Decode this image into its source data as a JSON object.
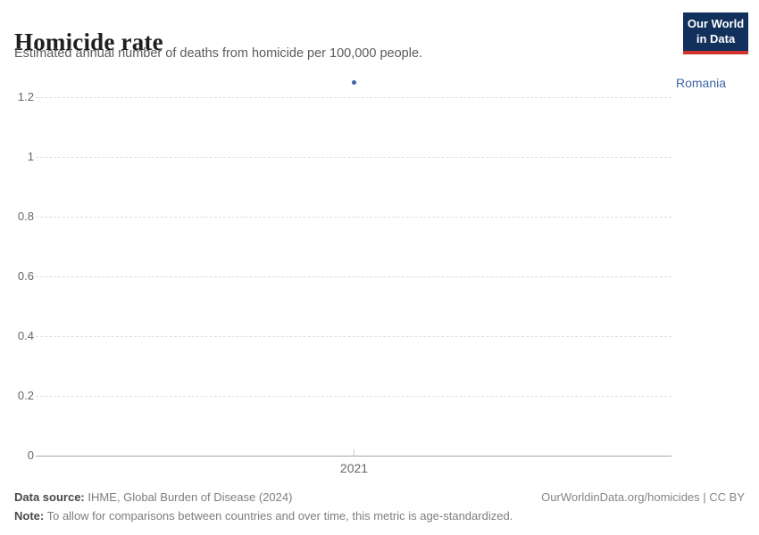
{
  "header": {
    "title": "Homicide rate",
    "subtitle": "Estimated annual number of deaths from homicide per 100,000 people.",
    "logo_line1": "Our World",
    "logo_line2": "in Data"
  },
  "chart_data": {
    "type": "scatter",
    "title": "Homicide rate",
    "subtitle": "Estimated annual number of deaths from homicide per 100,000 people.",
    "series": [
      {
        "name": "Romania",
        "x": [
          2021
        ],
        "values": [
          1.25
        ]
      }
    ],
    "x_tick_labels": [
      "2021"
    ],
    "y_ticks": [
      0,
      0.2,
      0.4,
      0.6,
      0.8,
      1,
      1.2
    ],
    "ylim": [
      0,
      1.25
    ],
    "xlabel": "",
    "ylabel": "",
    "grid": "horizontal-dashed",
    "legend_position": "right-of-plot"
  },
  "entity": {
    "label": "Romania",
    "color": "#3d65a5"
  },
  "footer": {
    "source_label": "Data source:",
    "source_text": " IHME, Global Burden of Disease (2024)",
    "note_label": "Note:",
    "note_text": " To allow for comparisons between countries and over time, this metric is age-standardized.",
    "link": "OurWorldinData.org/homicides | CC BY"
  },
  "colors": {
    "accent_blue": "#3d65a5",
    "logo_navy": "#12305c",
    "logo_red": "#d1332e",
    "gridline": "#dcdcdc",
    "axis": "#a8a8a8",
    "tick_text": "#666666"
  }
}
